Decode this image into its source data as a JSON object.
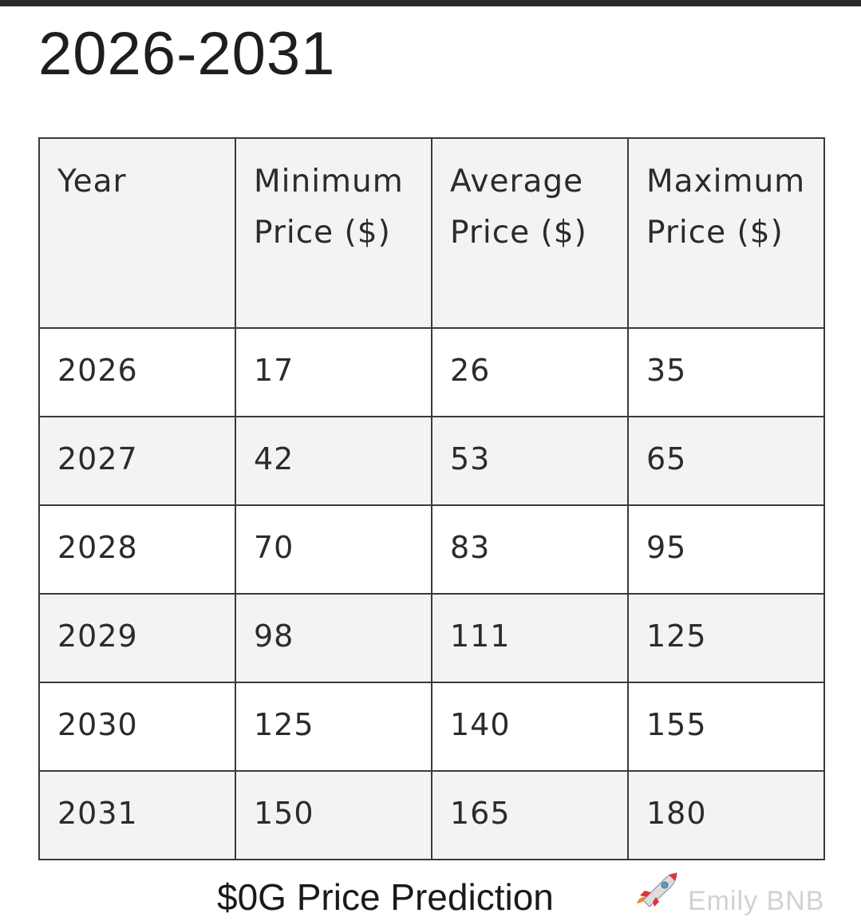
{
  "title": "2026-2031",
  "table": {
    "headers": [
      "Year",
      "Minimum Price ($)",
      "Average Price ($)",
      "Maximum Price ($)"
    ],
    "rows": [
      [
        "2026",
        "17",
        "26",
        "35"
      ],
      [
        "2027",
        "42",
        "53",
        "65"
      ],
      [
        "2028",
        "70",
        "83",
        "95"
      ],
      [
        "2029",
        "98",
        "111",
        "125"
      ],
      [
        "2030",
        "125",
        "140",
        "155"
      ],
      [
        "2031",
        "150",
        "165",
        "180"
      ]
    ]
  },
  "caption": "$0G Price Prediction",
  "icons": {
    "caption_icon": "rocket-icon"
  },
  "watermark": "Emily BNB",
  "colors": {
    "header_bg": "#f3f3f3",
    "alt_row_bg": "#f3f3f3",
    "border": "#3a3a3a",
    "text": "#2b2b2b"
  }
}
